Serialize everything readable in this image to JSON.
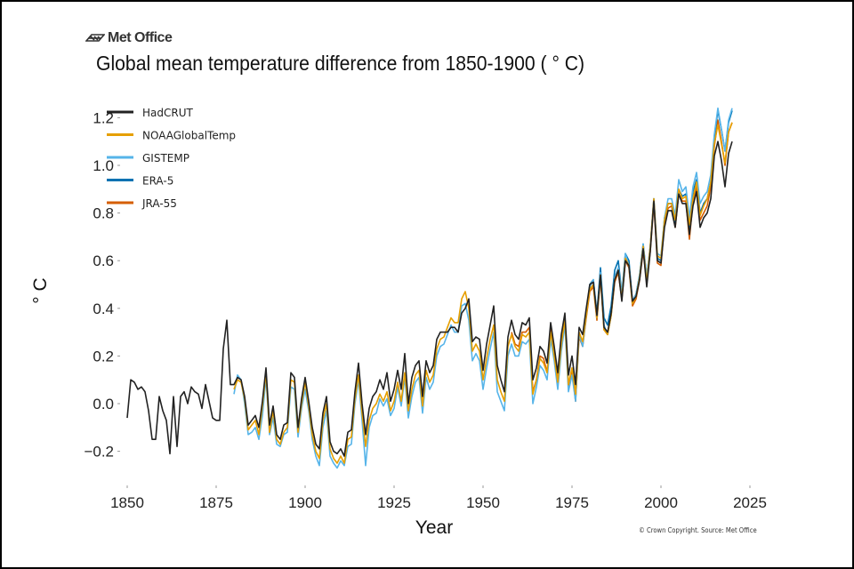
{
  "header": {
    "logo_text": "Met Office",
    "title": "Global mean temperature difference from 1850-1900 ( ° C)"
  },
  "footer": {
    "copyright": "© Crown Copyright. Source: Met Office"
  },
  "chart_data": {
    "type": "line",
    "title": "Global mean temperature difference from 1850-1900 ( ° C)",
    "xlabel": "Year",
    "ylabel": "° C",
    "xlim": [
      1845,
      2025
    ],
    "ylim": [
      -0.32,
      1.27
    ],
    "xticks": [
      1850,
      1875,
      1900,
      1925,
      1950,
      1975,
      2000,
      2025
    ],
    "xtick_labels": [
      "1850",
      "1875",
      "1900",
      "1925",
      "1950",
      "1975",
      "2000",
      "2025"
    ],
    "yticks": [
      -0.2,
      0.0,
      0.2,
      0.4,
      0.6,
      0.8,
      1.0,
      1.2
    ],
    "ytick_labels": [
      "−0.2",
      "0.0",
      "0.2",
      "0.4",
      "0.6",
      "0.8",
      "1.0",
      "1.2"
    ],
    "grid": false,
    "legend_position": "top-left",
    "series": [
      {
        "name": "HadCRUT",
        "color": "#222222",
        "start_year": 1850,
        "values": [
          -0.06,
          0.1,
          0.09,
          0.06,
          0.07,
          0.05,
          -0.03,
          -0.15,
          -0.15,
          0.03,
          -0.03,
          -0.07,
          -0.21,
          0.03,
          -0.18,
          0.03,
          0.05,
          0.0,
          0.07,
          0.05,
          0.04,
          -0.02,
          0.08,
          0.01,
          -0.06,
          -0.07,
          -0.07,
          0.23,
          0.35,
          0.08,
          0.08,
          0.11,
          0.1,
          0.03,
          -0.09,
          -0.07,
          -0.05,
          -0.1,
          0.01,
          0.15,
          -0.09,
          -0.01,
          -0.13,
          -0.15,
          -0.09,
          -0.08,
          0.13,
          0.11,
          -0.1,
          0.02,
          0.11,
          0.01,
          -0.1,
          -0.17,
          -0.19,
          -0.04,
          0.03,
          -0.16,
          -0.2,
          -0.21,
          -0.19,
          -0.22,
          -0.12,
          -0.11,
          0.05,
          0.17,
          0.0,
          -0.13,
          -0.02,
          0.03,
          0.05,
          0.1,
          0.06,
          0.13,
          0.01,
          0.06,
          0.14,
          0.06,
          0.21,
          0.0,
          0.11,
          0.16,
          0.18,
          0.03,
          0.18,
          0.13,
          0.16,
          0.27,
          0.3,
          0.3,
          0.3,
          0.32,
          0.32,
          0.3,
          0.38,
          0.4,
          0.44,
          0.26,
          0.28,
          0.27,
          0.14,
          0.25,
          0.33,
          0.41,
          0.16,
          0.1,
          0.05,
          0.28,
          0.35,
          0.29,
          0.27,
          0.34,
          0.33,
          0.36,
          0.1,
          0.15,
          0.24,
          0.22,
          0.17,
          0.34,
          0.24,
          0.13,
          0.29,
          0.38,
          0.12,
          0.2,
          0.08,
          0.32,
          0.29,
          0.4,
          0.5,
          0.51,
          0.37,
          0.54,
          0.32,
          0.3,
          0.38,
          0.52,
          0.56,
          0.43,
          0.6,
          0.58,
          0.43,
          0.45,
          0.52,
          0.65,
          0.49,
          0.64,
          0.85,
          0.6,
          0.59,
          0.74,
          0.81,
          0.81,
          0.74,
          0.88,
          0.84,
          0.84,
          0.71,
          0.83,
          0.89,
          0.74,
          0.78,
          0.8,
          0.86,
          1.04,
          1.1,
          1.02,
          0.91,
          1.05,
          1.1
        ]
      },
      {
        "name": "NOAAGlobalTemp",
        "color": "#e69f00",
        "start_year": 1880,
        "values": [
          0.06,
          0.1,
          0.09,
          0.02,
          -0.11,
          -0.09,
          -0.07,
          -0.13,
          -0.01,
          0.13,
          -0.12,
          -0.03,
          -0.15,
          -0.17,
          -0.12,
          -0.1,
          0.1,
          0.09,
          -0.12,
          0.0,
          0.09,
          -0.01,
          -0.13,
          -0.2,
          -0.23,
          -0.07,
          0.0,
          -0.19,
          -0.23,
          -0.25,
          -0.22,
          -0.25,
          -0.15,
          -0.14,
          0.02,
          0.12,
          -0.04,
          -0.18,
          -0.07,
          -0.02,
          0.0,
          0.04,
          0.01,
          0.05,
          -0.03,
          0.01,
          0.09,
          0.01,
          0.13,
          -0.03,
          0.06,
          0.12,
          0.14,
          -0.01,
          0.14,
          0.09,
          0.12,
          0.23,
          0.27,
          0.28,
          0.32,
          0.36,
          0.34,
          0.34,
          0.44,
          0.47,
          0.4,
          0.22,
          0.25,
          0.22,
          0.1,
          0.19,
          0.27,
          0.33,
          0.1,
          0.05,
          0.01,
          0.24,
          0.29,
          0.24,
          0.22,
          0.29,
          0.28,
          0.3,
          0.04,
          0.1,
          0.19,
          0.17,
          0.13,
          0.3,
          0.2,
          0.09,
          0.25,
          0.35,
          0.08,
          0.15,
          0.04,
          0.3,
          0.26,
          0.37,
          0.48,
          0.5,
          0.36,
          0.54,
          0.31,
          0.29,
          0.37,
          0.52,
          0.56,
          0.44,
          0.61,
          0.58,
          0.42,
          0.45,
          0.53,
          0.66,
          0.51,
          0.66,
          0.86,
          0.62,
          0.61,
          0.77,
          0.84,
          0.84,
          0.77,
          0.9,
          0.86,
          0.87,
          0.75,
          0.86,
          0.93,
          0.79,
          0.83,
          0.86,
          0.93,
          1.09,
          1.17,
          1.09,
          1.01,
          1.14,
          1.18
        ]
      },
      {
        "name": "GISTEMP",
        "color": "#56b4e9",
        "start_year": 1880,
        "values": [
          0.04,
          0.12,
          0.1,
          0.0,
          -0.13,
          -0.12,
          -0.1,
          -0.15,
          -0.05,
          0.11,
          -0.13,
          -0.06,
          -0.17,
          -0.18,
          -0.13,
          -0.12,
          0.07,
          0.06,
          -0.14,
          -0.02,
          0.06,
          -0.03,
          -0.15,
          -0.22,
          -0.26,
          -0.1,
          -0.03,
          -0.22,
          -0.25,
          -0.27,
          -0.24,
          -0.26,
          -0.18,
          -0.17,
          0.0,
          0.1,
          -0.07,
          -0.26,
          -0.1,
          -0.05,
          -0.04,
          0.02,
          -0.01,
          0.02,
          -0.05,
          -0.02,
          0.07,
          -0.01,
          0.11,
          -0.06,
          0.03,
          0.09,
          0.11,
          -0.04,
          0.11,
          0.06,
          0.09,
          0.2,
          0.24,
          0.25,
          0.29,
          0.33,
          0.3,
          0.3,
          0.41,
          0.42,
          0.35,
          0.18,
          0.21,
          0.18,
          0.06,
          0.15,
          0.23,
          0.3,
          0.05,
          0.01,
          -0.03,
          0.2,
          0.25,
          0.2,
          0.2,
          0.26,
          0.25,
          0.27,
          0.0,
          0.07,
          0.16,
          0.14,
          0.1,
          0.27,
          0.18,
          0.06,
          0.22,
          0.33,
          0.05,
          0.12,
          0.01,
          0.29,
          0.24,
          0.37,
          0.49,
          0.52,
          0.36,
          0.55,
          0.33,
          0.29,
          0.37,
          0.53,
          0.57,
          0.46,
          0.63,
          0.58,
          0.42,
          0.46,
          0.54,
          0.67,
          0.53,
          0.66,
          0.86,
          0.63,
          0.62,
          0.78,
          0.86,
          0.86,
          0.79,
          0.94,
          0.89,
          0.91,
          0.78,
          0.91,
          0.97,
          0.84,
          0.87,
          0.89,
          0.96,
          1.13,
          1.24,
          1.15,
          1.06,
          1.19,
          1.24
        ]
      },
      {
        "name": "ERA-5",
        "color": "#0072b2",
        "start_year": 1979,
        "values": [
          0.38,
          0.5,
          0.52,
          0.38,
          0.57,
          0.36,
          0.33,
          0.41,
          0.56,
          0.6,
          0.46,
          0.63,
          0.6,
          0.43,
          0.46,
          0.54,
          0.67,
          0.53,
          0.66,
          0.86,
          0.61,
          0.6,
          0.78,
          0.84,
          0.84,
          0.76,
          0.9,
          0.87,
          0.88,
          0.74,
          0.89,
          0.94,
          0.8,
          0.84,
          0.86,
          0.93,
          1.12,
          1.23,
          1.15,
          1.06,
          1.18,
          1.23
        ]
      },
      {
        "name": "JRA-55",
        "color": "#d55e00",
        "start_year": 1958,
        "values": [
          0.3,
          0.25,
          0.24,
          0.3,
          0.3,
          0.32,
          0.05,
          0.1,
          0.2,
          0.19,
          0.13,
          0.31,
          0.22,
          0.1,
          0.25,
          0.36,
          0.07,
          0.14,
          0.01,
          0.28,
          0.24,
          0.36,
          0.47,
          0.49,
          0.35,
          0.53,
          0.31,
          0.29,
          0.37,
          0.51,
          0.55,
          0.44,
          0.6,
          0.57,
          0.41,
          0.44,
          0.52,
          0.64,
          0.51,
          0.64,
          0.84,
          0.59,
          0.58,
          0.76,
          0.82,
          0.83,
          0.74,
          0.88,
          0.85,
          0.85,
          0.69,
          0.85,
          0.91,
          0.77,
          0.8,
          0.83,
          0.91,
          1.08,
          1.19,
          1.1,
          1.0,
          1.14,
          1.18
        ]
      }
    ]
  }
}
